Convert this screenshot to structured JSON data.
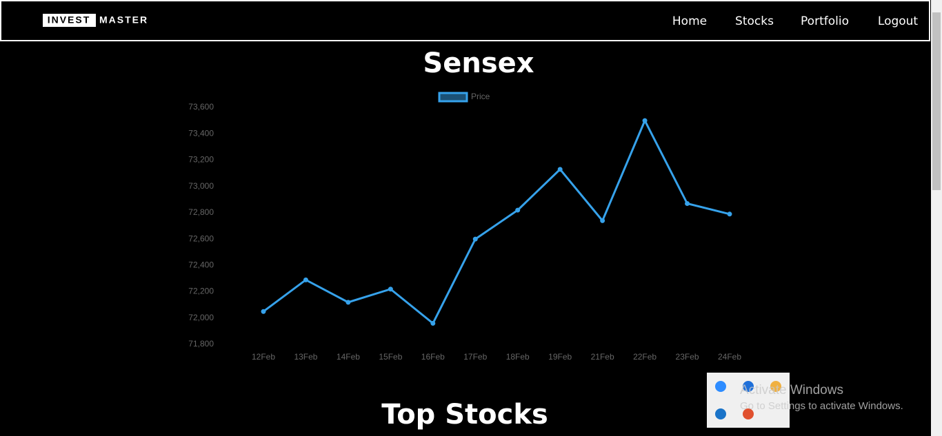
{
  "nav": {
    "logo": [
      "INVEST",
      "MASTER"
    ],
    "links": [
      "Home",
      "Stocks",
      "Portfolio",
      "Logout"
    ]
  },
  "chart_data": {
    "type": "line",
    "title": "Sensex",
    "categories": [
      "12Feb",
      "13Feb",
      "14Feb",
      "15Feb",
      "16Feb",
      "17Feb",
      "18Feb",
      "19Feb",
      "21Feb",
      "22Feb",
      "23Feb",
      "24Feb"
    ],
    "series": [
      {
        "name": "Price",
        "color": "#36a2eb",
        "values": [
          72050,
          72290,
          72120,
          72220,
          71960,
          72600,
          72820,
          73130,
          72740,
          73500,
          72870,
          72790
        ]
      }
    ],
    "ylim": [
      71800,
      73600
    ],
    "yticks": [
      {
        "value": 71800,
        "label": "71,800"
      },
      {
        "value": 72000,
        "label": "72,000"
      },
      {
        "value": 72200,
        "label": "72,200"
      },
      {
        "value": 72400,
        "label": "72,400"
      },
      {
        "value": 72600,
        "label": "72,600"
      },
      {
        "value": 72800,
        "label": "72,800"
      },
      {
        "value": 73000,
        "label": "73,000"
      },
      {
        "value": 73200,
        "label": "73,200"
      },
      {
        "value": 73400,
        "label": "73,400"
      },
      {
        "value": 73600,
        "label": "73,600"
      }
    ],
    "legend": "top",
    "grid": false
  },
  "section_title": "Top Stocks",
  "watermark": {
    "title": "Activate Windows",
    "subtitle": "Go to Settings to activate Windows."
  }
}
